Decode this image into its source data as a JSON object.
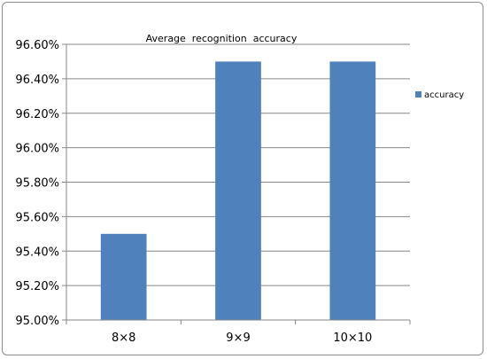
{
  "chart_data": {
    "type": "bar",
    "title": "Average  recognition  accuracy",
    "categories": [
      "8×8",
      "9×9",
      "10×10"
    ],
    "series": [
      {
        "name": "accuracy",
        "values": [
          95.5,
          96.5,
          96.5
        ]
      }
    ],
    "ylim": [
      95.0,
      96.6
    ],
    "yticks": [
      95.0,
      95.2,
      95.4,
      95.6,
      95.8,
      96.0,
      96.2,
      96.4,
      96.6
    ],
    "ytick_labels": [
      "95.00%",
      "95.20%",
      "95.40%",
      "95.60%",
      "95.80%",
      "96.00%",
      "96.20%",
      "96.40%",
      "96.60%"
    ],
    "grid": true,
    "legend_position": "right",
    "colors": {
      "bar": "#4f81bd",
      "grid": "#868686",
      "axis": "#868686"
    }
  }
}
